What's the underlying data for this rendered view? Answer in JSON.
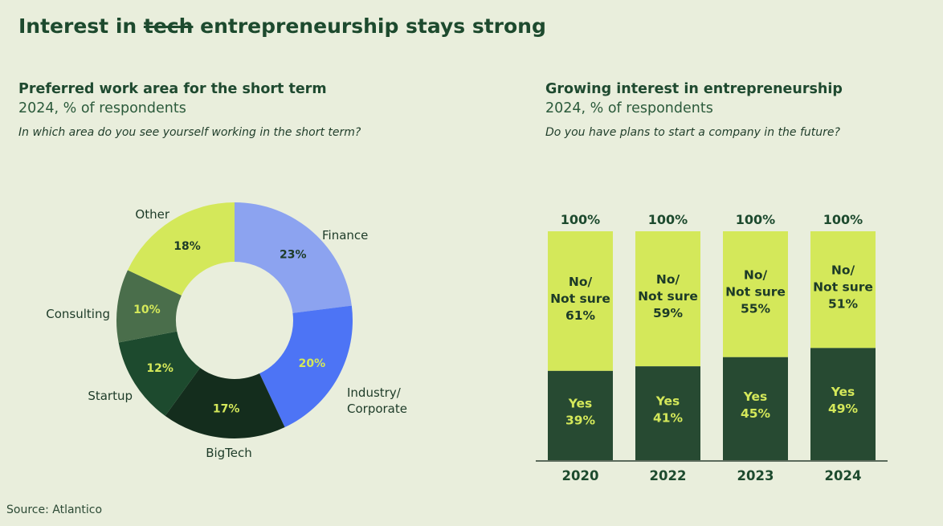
{
  "title": {
    "before": "Interest in ",
    "struck": "tech",
    "after": " entrepreneurship stays strong"
  },
  "source": "Source: Atlantico",
  "colors": {
    "background": "#e9eedc",
    "finance": "#8ca3f0",
    "industry": "#4d74f5",
    "bigtech": "#142d1d",
    "startup": "#1d4a2e",
    "consulting": "#4a6e4b",
    "other": "#d4e85a",
    "no": "#d4e85a",
    "yes": "#274a32",
    "yes_text": "#d4e85a",
    "dark_text": "#1d3b28"
  },
  "chart_data": [
    {
      "type": "pie",
      "title": "Preferred work area for the short term",
      "subtitle": "2024, % of respondents",
      "question": "In which area do you see yourself working in the short term?",
      "slices": [
        {
          "name": "Finance",
          "value": 23,
          "label": "23%",
          "color": "#8ca3f0",
          "text_color": "#1d3b28"
        },
        {
          "name": "Industry/ Corporate",
          "name_lines": [
            "Industry/",
            "Corporate"
          ],
          "value": 20,
          "label": "20%",
          "color": "#4d74f5",
          "text_color": "#d4e85a"
        },
        {
          "name": "BigTech",
          "value": 17,
          "label": "17%",
          "color": "#142d1d",
          "text_color": "#d4e85a"
        },
        {
          "name": "Startup",
          "value": 12,
          "label": "12%",
          "color": "#1d4a2e",
          "text_color": "#d4e85a"
        },
        {
          "name": "Consulting",
          "value": 10,
          "label": "10%",
          "color": "#4a6e4b",
          "text_color": "#d4e85a"
        },
        {
          "name": "Other",
          "value": 18,
          "label": "18%",
          "color": "#d4e85a",
          "text_color": "#1d3b28"
        }
      ]
    },
    {
      "type": "bar",
      "stacked": true,
      "title": "Growing interest in entrepreneurship",
      "subtitle": "2024, % of respondents",
      "question": "Do you have plans to start a company in the future?",
      "categories": [
        "2020",
        "2022",
        "2023",
        "2024"
      ],
      "totals": [
        "100%",
        "100%",
        "100%",
        "100%"
      ],
      "ylim": [
        0,
        100
      ],
      "series": [
        {
          "name": "Yes",
          "values": [
            39,
            41,
            45,
            49
          ],
          "labels": [
            "39%",
            "41%",
            "45%",
            "49%"
          ],
          "color": "#274a32",
          "text_color": "#d4e85a"
        },
        {
          "name": "No/ Not sure",
          "name_lines": [
            "No/",
            "Not sure"
          ],
          "values": [
            61,
            59,
            55,
            51
          ],
          "labels": [
            "61%",
            "59%",
            "55%",
            "51%"
          ],
          "color": "#d4e85a",
          "text_color": "#1d3b28"
        }
      ]
    }
  ]
}
